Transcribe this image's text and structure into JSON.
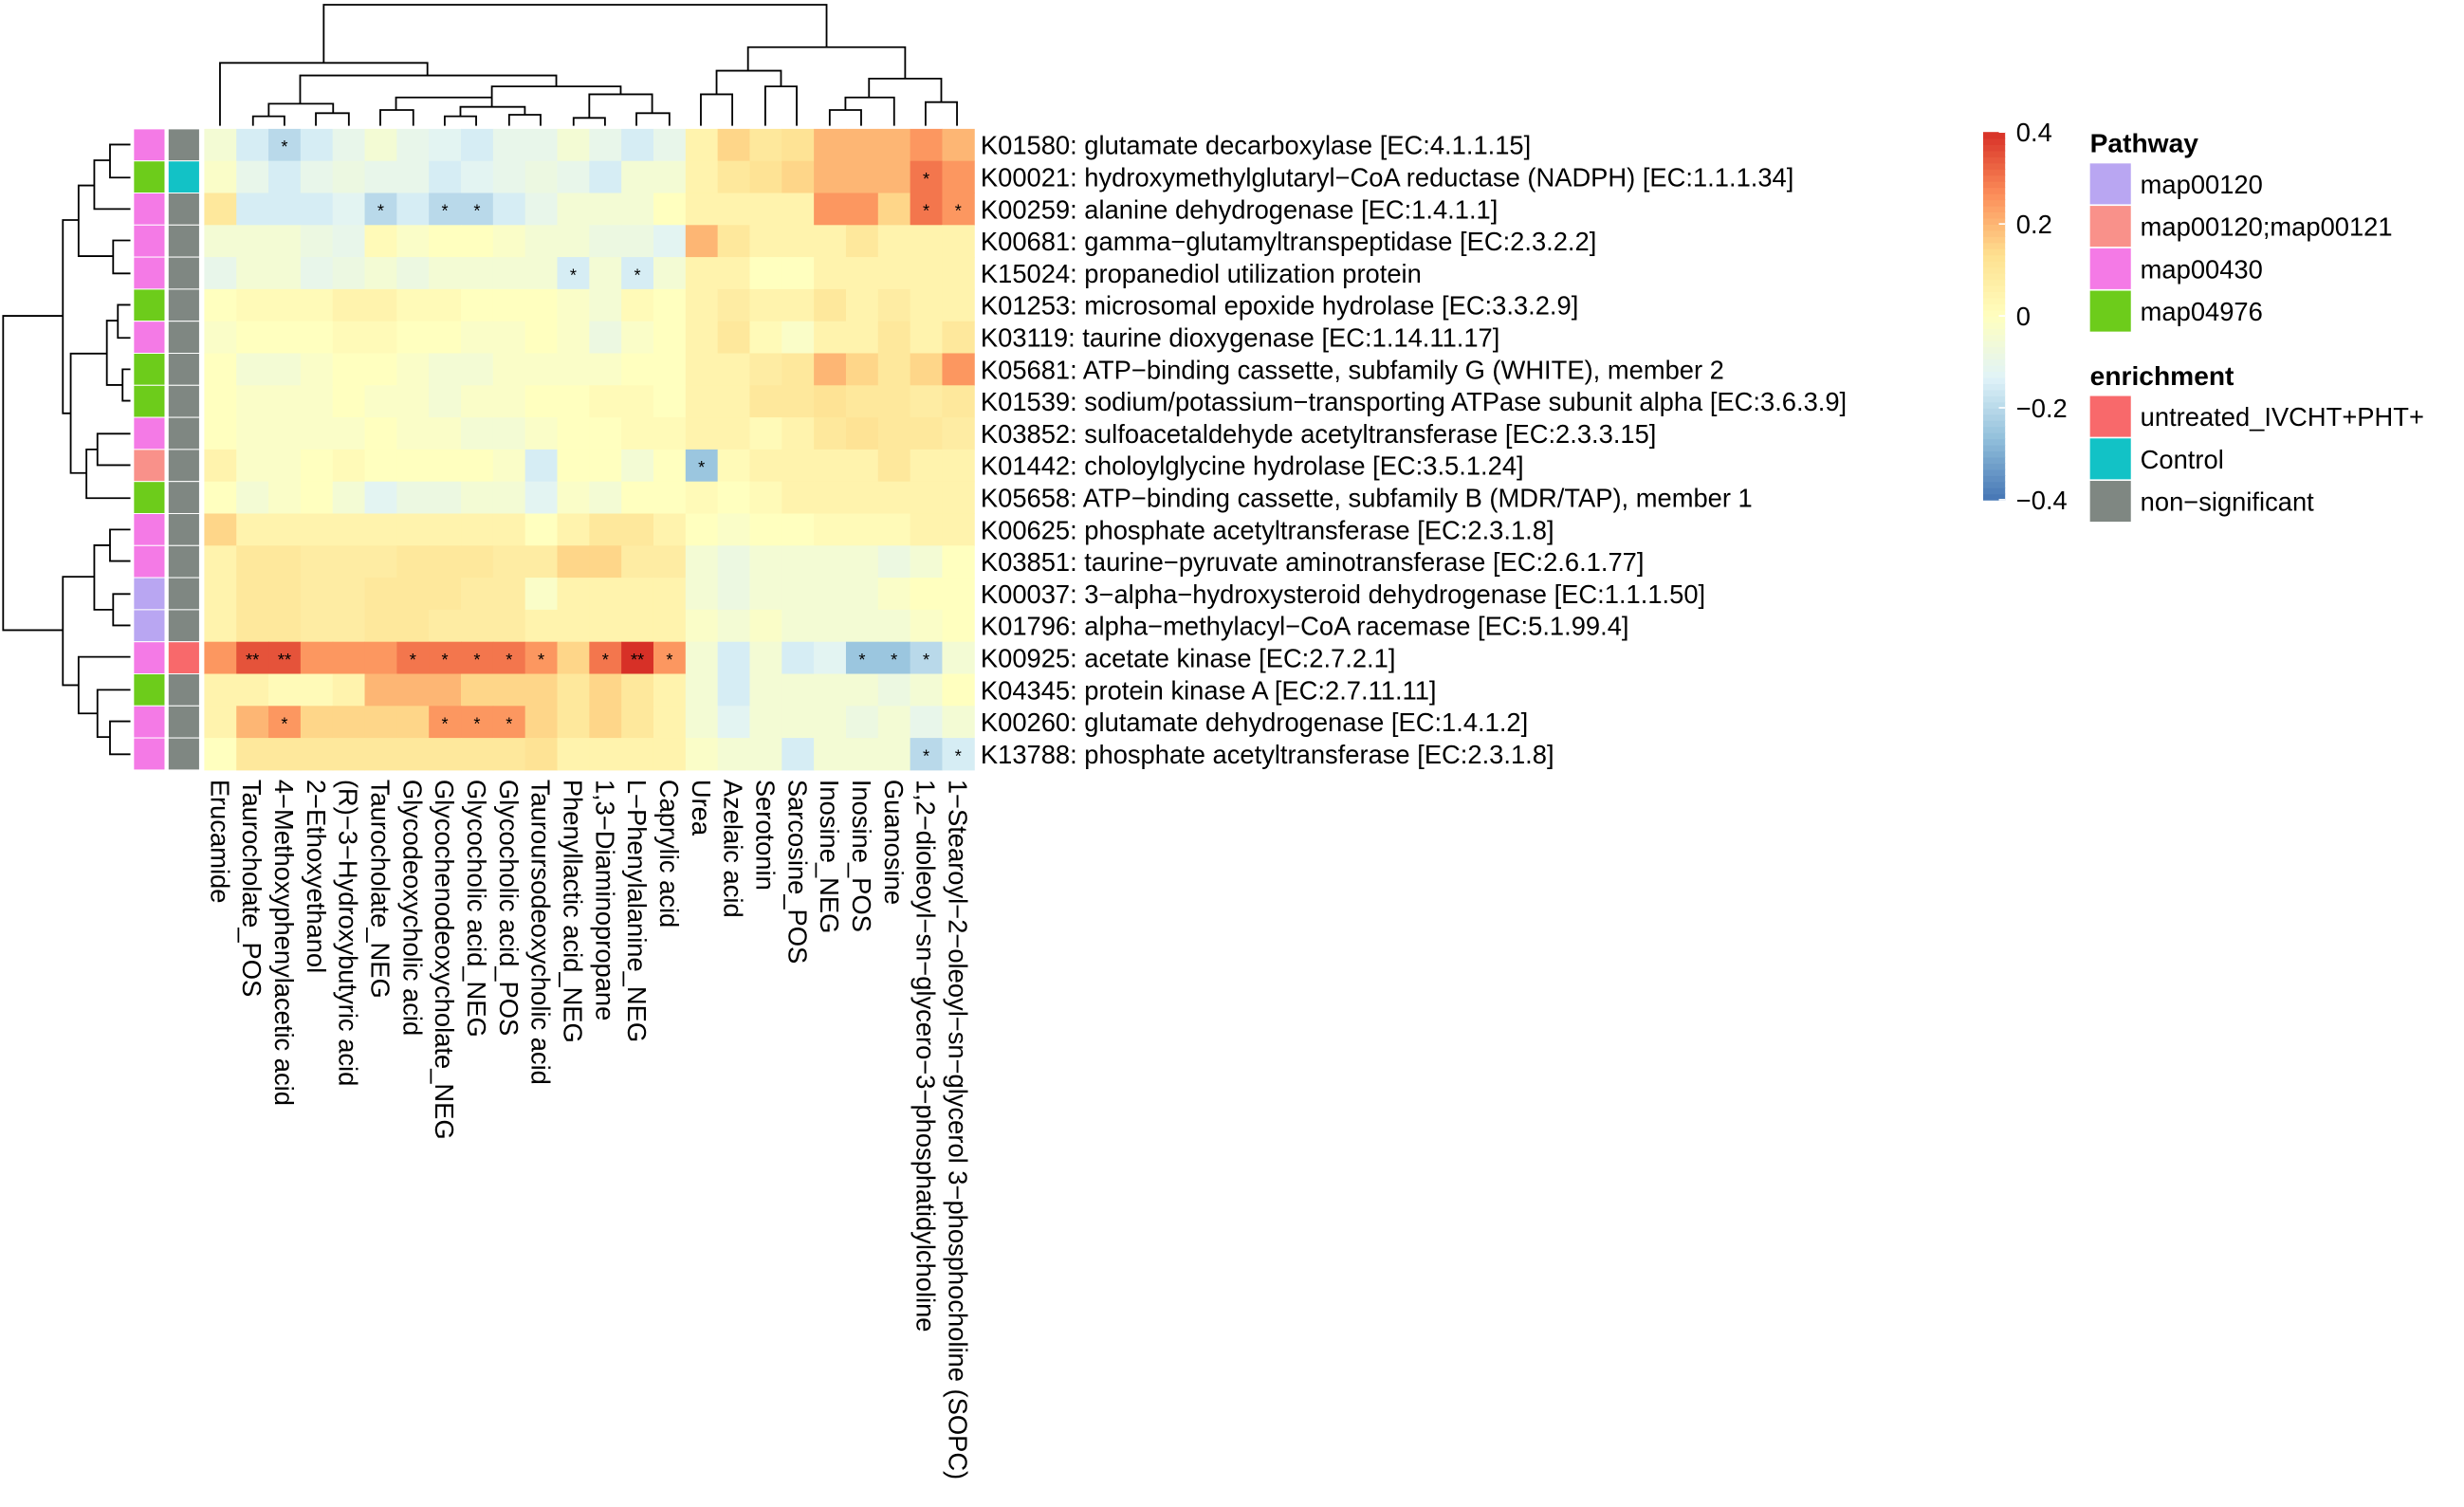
{
  "chart_data": {
    "type": "heatmap",
    "categories": [
      "Erucamide",
      "Taurocholate_POS",
      "4−Methoxyphenylacetic acid",
      "2−Ethoxyethanol",
      "(R)−3−Hydroxybutyric acid",
      "Taurocholate_NEG",
      "Glycodeoxycholic acid",
      "Glycochenodeoxycholate_NEG",
      "Glycocholic acid_NEG",
      "Glycocholic acid_POS",
      "Tauroursodeoxycholic acid",
      "Phenyllactic acid_NEG",
      "1,3−Diaminopropane",
      "L−Phenylalanine_NEG",
      "Caprylic acid",
      "Urea",
      "Azelaic acid",
      "Serotonin",
      "Sarcosine_POS",
      "Inosine_NEG",
      "Inosine_POS",
      "Guanosine",
      "1,2−dioleoyl−sn−glycero−3−phosphatidylcholine",
      "1−Stearoyl−2−oleoyl−sn−glycerol 3−phosphocholine (SOPC)"
    ],
    "rows": [
      "K01580: glutamate decarboxylase [EC:4.1.1.15]",
      "K00021: hydroxymethylglutaryl−CoA reductase (NADPH) [EC:1.1.1.34]",
      "K00259: alanine dehydrogenase [EC:1.4.1.1]",
      "K00681: gamma−glutamyltranspeptidase [EC:2.3.2.2]",
      "K15024: propanediol utilization protein",
      "K01253: microsomal epoxide hydrolase [EC:3.3.2.9]",
      "K03119: taurine dioxygenase [EC:1.14.11.17]",
      "K05681: ATP−binding cassette, subfamily G (WHITE), member 2",
      "K01539: sodium/potassium−transporting ATPase subunit alpha [EC:3.6.3.9]",
      "K03852: sulfoacetaldehyde acetyltransferase [EC:2.3.3.15]",
      "K01442: choloylglycine hydrolase [EC:3.5.1.24]",
      "K05658: ATP−binding cassette, subfamily B (MDR/TAP), member 1",
      "K00625: phosphate acetyltransferase [EC:2.3.1.8]",
      "K03851: taurine−pyruvate aminotransferase [EC:2.6.1.77]",
      "K00037: 3−alpha−hydroxysteroid dehydrogenase [EC:1.1.1.50]",
      "K01796: alpha−methylacyl−CoA racemase [EC:5.1.99.4]",
      "K00925: acetate kinase [EC:2.7.2.1]",
      "K04345: protein kinase A [EC:2.7.11.11]",
      "K00260: glutamate dehydrogenase [EC:1.4.1.2]",
      "K13788: phosphate acetyltransferase [EC:2.3.1.8]"
    ],
    "values": [
      [
        -0.05,
        -0.15,
        -0.2,
        -0.15,
        -0.1,
        -0.05,
        -0.1,
        -0.12,
        -0.15,
        -0.1,
        -0.1,
        -0.05,
        -0.1,
        -0.15,
        -0.1,
        0.05,
        0.15,
        0.1,
        0.12,
        0.2,
        0.2,
        0.2,
        0.25,
        0.2
      ],
      [
        -0.02,
        -0.1,
        -0.15,
        -0.1,
        -0.08,
        -0.1,
        -0.1,
        -0.15,
        -0.12,
        -0.1,
        -0.08,
        -0.1,
        -0.15,
        -0.05,
        -0.05,
        0.05,
        0.1,
        0.12,
        0.15,
        0.2,
        0.2,
        0.2,
        0.3,
        0.25
      ],
      [
        0.1,
        -0.15,
        -0.15,
        -0.15,
        -0.12,
        -0.2,
        -0.15,
        -0.2,
        -0.2,
        -0.15,
        -0.1,
        -0.05,
        -0.05,
        -0.05,
        0,
        0.05,
        0.05,
        0.05,
        0.05,
        0.25,
        0.25,
        0.15,
        0.3,
        0.25
      ],
      [
        -0.05,
        -0.05,
        -0.05,
        -0.08,
        -0.1,
        0.02,
        -0.02,
        0,
        0,
        -0.02,
        -0.05,
        -0.05,
        -0.08,
        -0.08,
        -0.12,
        0.2,
        0.1,
        0.05,
        0.05,
        0.05,
        0.1,
        0.05,
        0.05,
        0.05
      ],
      [
        -0.1,
        -0.05,
        -0.05,
        -0.1,
        -0.08,
        -0.05,
        -0.08,
        -0.05,
        -0.05,
        -0.05,
        -0.05,
        -0.15,
        -0.05,
        -0.15,
        -0.05,
        0.05,
        0.05,
        0,
        0,
        0.05,
        0.05,
        0.05,
        0.05,
        0.05
      ],
      [
        0,
        0.02,
        0.02,
        0.02,
        0.05,
        0.05,
        0.02,
        0.02,
        0,
        0,
        0,
        -0.02,
        -0.05,
        0.02,
        0,
        0.05,
        0.08,
        0.05,
        0.05,
        0.1,
        0.05,
        0.08,
        0.05,
        0.05
      ],
      [
        -0.02,
        0,
        0,
        0,
        0.02,
        0.02,
        0,
        0,
        -0.02,
        -0.02,
        0,
        -0.02,
        -0.08,
        -0.02,
        0,
        0.05,
        0.1,
        0.02,
        -0.02,
        0.05,
        0.05,
        0.1,
        0.05,
        0.1
      ],
      [
        0,
        -0.05,
        -0.05,
        -0.02,
        0,
        0,
        -0.02,
        -0.05,
        -0.05,
        -0.02,
        -0.02,
        -0.02,
        -0.02,
        0,
        0,
        0.05,
        0.05,
        0.08,
        0.1,
        0.2,
        0.15,
        0.1,
        0.15,
        0.25
      ],
      [
        0,
        -0.02,
        -0.02,
        -0.02,
        0,
        -0.02,
        -0.02,
        -0.05,
        -0.02,
        -0.02,
        0,
        0,
        0.02,
        0.02,
        0,
        0.05,
        0.05,
        0.1,
        0.1,
        0.12,
        0.1,
        0.1,
        0.08,
        0.1
      ],
      [
        0,
        -0.02,
        -0.02,
        -0.02,
        -0.02,
        0,
        -0.02,
        -0.02,
        -0.05,
        -0.05,
        -0.02,
        0,
        0,
        0.02,
        0.02,
        0.05,
        0.05,
        0.02,
        0.05,
        0.1,
        0.12,
        0.1,
        0.1,
        0.08
      ],
      [
        0.05,
        -0.02,
        -0.02,
        0,
        0.02,
        0,
        0,
        0,
        0,
        -0.02,
        -0.15,
        0,
        0,
        -0.05,
        0,
        -0.25,
        0.02,
        0.05,
        0.05,
        0.05,
        0.05,
        0.1,
        0.05,
        0.05
      ],
      [
        0,
        -0.05,
        -0.02,
        0,
        -0.05,
        -0.12,
        -0.08,
        -0.08,
        -0.05,
        -0.05,
        -0.12,
        -0.02,
        -0.05,
        0,
        0,
        0.02,
        0,
        0.02,
        0.05,
        0.05,
        0.05,
        0.05,
        0.05,
        0.05
      ],
      [
        0.15,
        0.05,
        0.05,
        0.05,
        0.05,
        0.05,
        0.05,
        0.05,
        0.05,
        0.05,
        0,
        0.05,
        0.1,
        0.1,
        0.05,
        0,
        -0.02,
        0,
        0,
        0.02,
        0.02,
        0.02,
        0.05,
        0.05
      ],
      [
        0.05,
        0.1,
        0.1,
        0.08,
        0.08,
        0.08,
        0.1,
        0.1,
        0.1,
        0.08,
        0.08,
        0.15,
        0.15,
        0.08,
        0.08,
        -0.05,
        -0.08,
        -0.05,
        -0.05,
        -0.05,
        -0.05,
        -0.08,
        -0.05,
        0
      ],
      [
        0.05,
        0.1,
        0.1,
        0.08,
        0.08,
        0.1,
        0.1,
        0.1,
        0.08,
        0.08,
        -0.02,
        0.05,
        0.05,
        0.05,
        0.05,
        -0.05,
        -0.08,
        -0.05,
        -0.05,
        -0.05,
        -0.05,
        -0.02,
        0,
        0
      ],
      [
        0.05,
        0.1,
        0.1,
        0.08,
        0.08,
        0.1,
        0.1,
        0.08,
        0.08,
        0.08,
        0.05,
        0.05,
        0.05,
        0.05,
        0.05,
        -0.02,
        -0.05,
        -0.02,
        -0.05,
        -0.05,
        -0.05,
        -0.05,
        -0.02,
        0
      ],
      [
        0.25,
        0.35,
        0.35,
        0.25,
        0.25,
        0.25,
        0.3,
        0.3,
        0.3,
        0.3,
        0.25,
        0.15,
        0.3,
        0.4,
        0.25,
        -0.05,
        -0.15,
        -0.05,
        -0.15,
        -0.12,
        -0.25,
        -0.25,
        -0.2,
        -0.05
      ],
      [
        0.05,
        0.05,
        0.02,
        0.02,
        0.05,
        0.2,
        0.2,
        0.2,
        0.15,
        0.15,
        0.15,
        0.1,
        0.15,
        0.1,
        0.05,
        -0.05,
        -0.15,
        -0.05,
        -0.05,
        -0.05,
        -0.05,
        -0.08,
        -0.05,
        0
      ],
      [
        0.05,
        0.2,
        0.25,
        0.15,
        0.15,
        0.15,
        0.15,
        0.25,
        0.25,
        0.25,
        0.15,
        0.1,
        0.15,
        0.1,
        0.05,
        -0.05,
        -0.12,
        -0.05,
        -0.05,
        -0.05,
        -0.08,
        -0.05,
        -0.1,
        -0.05
      ],
      [
        0,
        0.1,
        0.1,
        0.1,
        0.1,
        0.1,
        0.1,
        0.1,
        0.1,
        0.1,
        0.12,
        0.05,
        0.05,
        0.05,
        0.05,
        -0.02,
        -0.05,
        -0.05,
        -0.15,
        -0.05,
        -0.05,
        -0.05,
        -0.2,
        -0.15
      ]
    ],
    "cell_labels": [
      [
        null,
        null,
        "*",
        null,
        null,
        null,
        null,
        null,
        null,
        null,
        null,
        null,
        null,
        null,
        null,
        null,
        null,
        null,
        null,
        null,
        null,
        null,
        null,
        null
      ],
      [
        null,
        null,
        null,
        null,
        null,
        null,
        null,
        null,
        null,
        null,
        null,
        null,
        null,
        null,
        null,
        null,
        null,
        null,
        null,
        null,
        null,
        null,
        "*",
        null
      ],
      [
        null,
        null,
        null,
        null,
        null,
        "*",
        null,
        "*",
        "*",
        null,
        null,
        null,
        null,
        null,
        null,
        null,
        null,
        null,
        null,
        null,
        null,
        null,
        "*",
        "*"
      ],
      [
        null,
        null,
        null,
        null,
        null,
        null,
        null,
        null,
        null,
        null,
        null,
        null,
        null,
        null,
        null,
        null,
        null,
        null,
        null,
        null,
        null,
        null,
        null,
        null
      ],
      [
        null,
        null,
        null,
        null,
        null,
        null,
        null,
        null,
        null,
        null,
        null,
        "*",
        null,
        "*",
        null,
        null,
        null,
        null,
        null,
        null,
        null,
        null,
        null,
        null
      ],
      [
        null,
        null,
        null,
        null,
        null,
        null,
        null,
        null,
        null,
        null,
        null,
        null,
        null,
        null,
        null,
        null,
        null,
        null,
        null,
        null,
        null,
        null,
        null,
        null
      ],
      [
        null,
        null,
        null,
        null,
        null,
        null,
        null,
        null,
        null,
        null,
        null,
        null,
        null,
        null,
        null,
        null,
        null,
        null,
        null,
        null,
        null,
        null,
        null,
        null
      ],
      [
        null,
        null,
        null,
        null,
        null,
        null,
        null,
        null,
        null,
        null,
        null,
        null,
        null,
        null,
        null,
        null,
        null,
        null,
        null,
        null,
        null,
        null,
        null,
        null
      ],
      [
        null,
        null,
        null,
        null,
        null,
        null,
        null,
        null,
        null,
        null,
        null,
        null,
        null,
        null,
        null,
        null,
        null,
        null,
        null,
        null,
        null,
        null,
        null,
        null
      ],
      [
        null,
        null,
        null,
        null,
        null,
        null,
        null,
        null,
        null,
        null,
        null,
        null,
        null,
        null,
        null,
        null,
        null,
        null,
        null,
        null,
        null,
        null,
        null,
        null
      ],
      [
        null,
        null,
        null,
        null,
        null,
        null,
        null,
        null,
        null,
        null,
        null,
        null,
        null,
        null,
        null,
        "*",
        null,
        null,
        null,
        null,
        null,
        null,
        null,
        null
      ],
      [
        null,
        null,
        null,
        null,
        null,
        null,
        null,
        null,
        null,
        null,
        null,
        null,
        null,
        null,
        null,
        null,
        null,
        null,
        null,
        null,
        null,
        null,
        null,
        null
      ],
      [
        null,
        null,
        null,
        null,
        null,
        null,
        null,
        null,
        null,
        null,
        null,
        null,
        null,
        null,
        null,
        null,
        null,
        null,
        null,
        null,
        null,
        null,
        null,
        null
      ],
      [
        null,
        null,
        null,
        null,
        null,
        null,
        null,
        null,
        null,
        null,
        null,
        null,
        null,
        null,
        null,
        null,
        null,
        null,
        null,
        null,
        null,
        null,
        null,
        null
      ],
      [
        null,
        null,
        null,
        null,
        null,
        null,
        null,
        null,
        null,
        null,
        null,
        null,
        null,
        null,
        null,
        null,
        null,
        null,
        null,
        null,
        null,
        null,
        null,
        null
      ],
      [
        null,
        null,
        null,
        null,
        null,
        null,
        null,
        null,
        null,
        null,
        null,
        null,
        null,
        null,
        null,
        null,
        null,
        null,
        null,
        null,
        null,
        null,
        null,
        null
      ],
      [
        null,
        "**",
        "**",
        null,
        null,
        null,
        "*",
        "*",
        "*",
        "*",
        "*",
        null,
        "*",
        "**",
        "*",
        null,
        null,
        null,
        null,
        null,
        "*",
        "*",
        "*",
        null
      ],
      [
        null,
        null,
        null,
        null,
        null,
        null,
        null,
        null,
        null,
        null,
        null,
        null,
        null,
        null,
        null,
        null,
        null,
        null,
        null,
        null,
        null,
        null,
        null,
        null
      ],
      [
        null,
        null,
        "*",
        null,
        null,
        null,
        null,
        "*",
        "*",
        "*",
        null,
        null,
        null,
        null,
        null,
        null,
        null,
        null,
        null,
        null,
        null,
        null,
        null,
        null
      ],
      [
        null,
        null,
        null,
        null,
        null,
        null,
        null,
        null,
        null,
        null,
        null,
        null,
        null,
        null,
        null,
        null,
        null,
        null,
        null,
        null,
        null,
        null,
        "*",
        "*"
      ]
    ],
    "row_pathway": [
      "map00430",
      "map04976",
      "map00430",
      "map00430",
      "map00430",
      "map04976",
      "map00430",
      "map04976",
      "map04976",
      "map00430",
      "map00120;map00121",
      "map04976",
      "map00430",
      "map00430",
      "map00120",
      "map00120",
      "map00430",
      "map04976",
      "map00430",
      "map00430"
    ],
    "row_enrichment": [
      "non−significant",
      "Control",
      "non−significant",
      "non−significant",
      "non−significant",
      "non−significant",
      "non−significant",
      "non−significant",
      "non−significant",
      "non−significant",
      "non−significant",
      "non−significant",
      "non−significant",
      "non−significant",
      "non−significant",
      "non−significant",
      "untreated_IVCHT+PHT+",
      "non−significant",
      "non−significant",
      "non−significant"
    ],
    "zlim": [
      -0.4,
      0.4
    ],
    "zticks": [
      0.4,
      0.2,
      0,
      {
        "value": -0.2,
        "label": "−0.2"
      },
      {
        "value": -0.4,
        "label": "−0.4"
      }
    ],
    "colors": [
      "#4575b4",
      "#91bfdb",
      "#e0f3f8",
      "#ffffbf",
      "#fee090",
      "#fc8d59",
      "#d73027"
    ],
    "legend_pathway": {
      "title": "Pathway",
      "items": [
        {
          "name": "map00120",
          "color": "#b9a6f2"
        },
        {
          "name": "map00120;map00121",
          "color": "#f9918a"
        },
        {
          "name": "map00430",
          "color": "#f47ae6"
        },
        {
          "name": "map04976",
          "color": "#6dcc1b"
        }
      ]
    },
    "legend_enrichment": {
      "title": "enrichment",
      "items": [
        {
          "name": "untreated_IVCHT+PHT+",
          "color": "#f8696b"
        },
        {
          "name": "Control",
          "color": "#12c2c6"
        },
        {
          "name": "non−significant",
          "color": "#7f8782"
        }
      ]
    }
  }
}
